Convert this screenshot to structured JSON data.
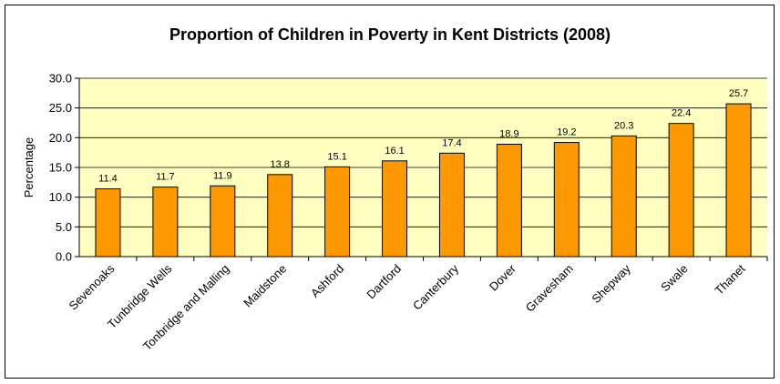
{
  "chart_data": {
    "type": "bar",
    "title": "Proportion of Children in Poverty in Kent Districts (2008)",
    "ylabel": "Percentage",
    "xlabel": "",
    "categories": [
      "Sevenoaks",
      "Tunbridge Wells",
      "Tonbridge and Malling",
      "Maidstone",
      "Ashford",
      "Dartford",
      "Canterbury",
      "Dover",
      "Gravesham",
      "Shepway",
      "Swale",
      "Thanet"
    ],
    "values": [
      11.4,
      11.7,
      11.9,
      13.8,
      15.1,
      16.1,
      17.4,
      18.9,
      19.2,
      20.3,
      22.4,
      25.7
    ],
    "ylim": [
      0,
      30
    ],
    "yticks": [
      "0.0",
      "5.0",
      "10.0",
      "15.0",
      "20.0",
      "25.0",
      "30.0"
    ],
    "grid": true,
    "legend": "none",
    "colors": {
      "bar": "#FF9900",
      "bar_edge": "#000000",
      "plot_bg": "#FFFFC0",
      "grid": "#000000"
    }
  }
}
